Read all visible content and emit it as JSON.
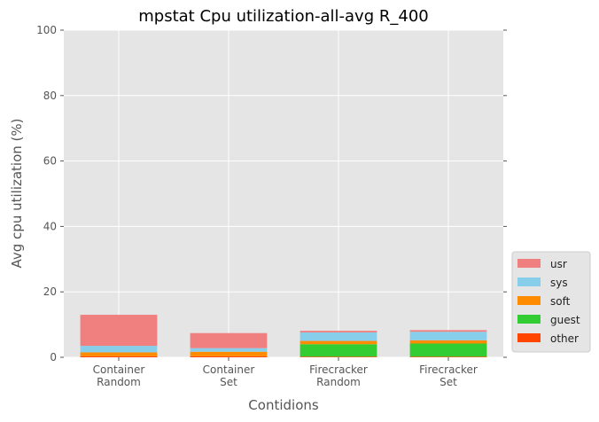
{
  "chart_data": {
    "type": "bar",
    "stacked": true,
    "title": "mpstat Cpu utilization-all-avg R_400",
    "xlabel": "Contidions",
    "ylabel": "Avg cpu utilization (%)",
    "ylim": [
      0,
      100
    ],
    "yticks": [
      "0",
      "20",
      "40",
      "60",
      "80",
      "100"
    ],
    "categories": [
      [
        "Container",
        "Random"
      ],
      [
        "Container",
        "Set"
      ],
      [
        "Firecracker",
        "Random"
      ],
      [
        "Firecracker",
        "Set"
      ]
    ],
    "series": [
      {
        "name": "other",
        "color": "#ff4500",
        "values": [
          0.3,
          0.3,
          0.2,
          0.2
        ]
      },
      {
        "name": "guest",
        "color": "#32cd32",
        "values": [
          0.0,
          0.0,
          3.8,
          4.0
        ]
      },
      {
        "name": "soft",
        "color": "#ff8c00",
        "values": [
          1.2,
          1.4,
          1.0,
          1.0
        ]
      },
      {
        "name": "sys",
        "color": "#87ceeb",
        "values": [
          2.0,
          1.1,
          2.6,
          2.6
        ]
      },
      {
        "name": "usr",
        "color": "#f08080",
        "values": [
          9.5,
          4.6,
          0.5,
          0.5
        ]
      }
    ],
    "legend_order": [
      "usr",
      "sys",
      "soft",
      "guest",
      "other"
    ],
    "legend_position": "lower right outside",
    "grid": true,
    "plot_background": "#e5e5e5"
  }
}
